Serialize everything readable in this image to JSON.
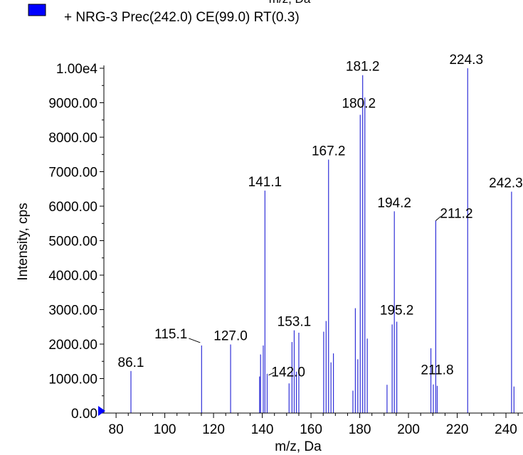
{
  "top_cut_label": "m/z, Da",
  "legend": {
    "swatch_color": "#0000ff",
    "label": "+ NRG-3 Prec(242.0) CE(99.0) RT(0.3)"
  },
  "colors": {
    "peak": "#3030d8",
    "axis": "#000000",
    "marker": "#0000ff"
  },
  "chart_data": {
    "type": "bar",
    "xlabel": "m/z, Da",
    "ylabel": "Intensity, cps",
    "xlim": [
      75,
      247
    ],
    "ylim": [
      0,
      10000
    ],
    "x_ticks": [
      80,
      100,
      120,
      140,
      160,
      180,
      200,
      220,
      240
    ],
    "y_ticks": [
      {
        "v": 0,
        "label": "0.00"
      },
      {
        "v": 1000,
        "label": "1000.00"
      },
      {
        "v": 2000,
        "label": "2000.00"
      },
      {
        "v": 3000,
        "label": "3000.00"
      },
      {
        "v": 4000,
        "label": "4000.00"
      },
      {
        "v": 5000,
        "label": "5000.00"
      },
      {
        "v": 6000,
        "label": "6000.00"
      },
      {
        "v": 7000,
        "label": "7000.00"
      },
      {
        "v": 8000,
        "label": "8000.00"
      },
      {
        "v": 9000,
        "label": "9000.00"
      },
      {
        "v": 10000,
        "label": "1.00e4"
      }
    ],
    "peaks": [
      {
        "x": 86.1,
        "y": 1220
      },
      {
        "x": 115.1,
        "y": 1960
      },
      {
        "x": 127.0,
        "y": 1990
      },
      {
        "x": 138.9,
        "y": 1060
      },
      {
        "x": 139.3,
        "y": 1700
      },
      {
        "x": 140.4,
        "y": 1960
      },
      {
        "x": 141.1,
        "y": 6450
      },
      {
        "x": 142.0,
        "y": 1140
      },
      {
        "x": 151.0,
        "y": 860
      },
      {
        "x": 152.2,
        "y": 2060
      },
      {
        "x": 153.1,
        "y": 2400
      },
      {
        "x": 154.0,
        "y": 1200
      },
      {
        "x": 155.0,
        "y": 2330
      },
      {
        "x": 165.2,
        "y": 2360
      },
      {
        "x": 166.2,
        "y": 2670
      },
      {
        "x": 167.2,
        "y": 7350
      },
      {
        "x": 168.2,
        "y": 1470
      },
      {
        "x": 169.2,
        "y": 1730
      },
      {
        "x": 177.2,
        "y": 650
      },
      {
        "x": 178.2,
        "y": 3040
      },
      {
        "x": 179.2,
        "y": 1560
      },
      {
        "x": 180.2,
        "y": 8650
      },
      {
        "x": 181.2,
        "y": 9800
      },
      {
        "x": 182.1,
        "y": 9150
      },
      {
        "x": 183.1,
        "y": 2160
      },
      {
        "x": 191.2,
        "y": 820
      },
      {
        "x": 193.3,
        "y": 2570
      },
      {
        "x": 194.2,
        "y": 5850
      },
      {
        "x": 195.2,
        "y": 2650
      },
      {
        "x": 209.2,
        "y": 1880
      },
      {
        "x": 210.2,
        "y": 830
      },
      {
        "x": 211.2,
        "y": 5580
      },
      {
        "x": 211.8,
        "y": 790
      },
      {
        "x": 224.3,
        "y": 10000
      },
      {
        "x": 242.3,
        "y": 6420
      },
      {
        "x": 243.3,
        "y": 770
      }
    ],
    "annotations": [
      {
        "text": "86.1",
        "x": 86.1,
        "y": 1220
      },
      {
        "text": "115.1",
        "x": 115.1,
        "y": 1960
      },
      {
        "text": "127.0",
        "x": 127.0,
        "y": 1990
      },
      {
        "text": "141.1",
        "x": 141.1,
        "y": 6450
      },
      {
        "text": "142.0",
        "x": 142.0,
        "y": 1140
      },
      {
        "text": "153.1",
        "x": 153.1,
        "y": 2400
      },
      {
        "text": "167.2",
        "x": 167.2,
        "y": 7350
      },
      {
        "text": "180.2",
        "x": 180.2,
        "y": 8650
      },
      {
        "text": "181.2",
        "x": 181.2,
        "y": 9800
      },
      {
        "text": "194.2",
        "x": 194.2,
        "y": 5850
      },
      {
        "text": "195.2",
        "x": 195.2,
        "y": 2650
      },
      {
        "text": "211.2",
        "x": 211.2,
        "y": 5580
      },
      {
        "text": "211.8",
        "x": 211.8,
        "y": 790
      },
      {
        "text": "224.3",
        "x": 224.3,
        "y": 10000
      },
      {
        "text": "242.3",
        "x": 242.3,
        "y": 6420
      }
    ]
  }
}
